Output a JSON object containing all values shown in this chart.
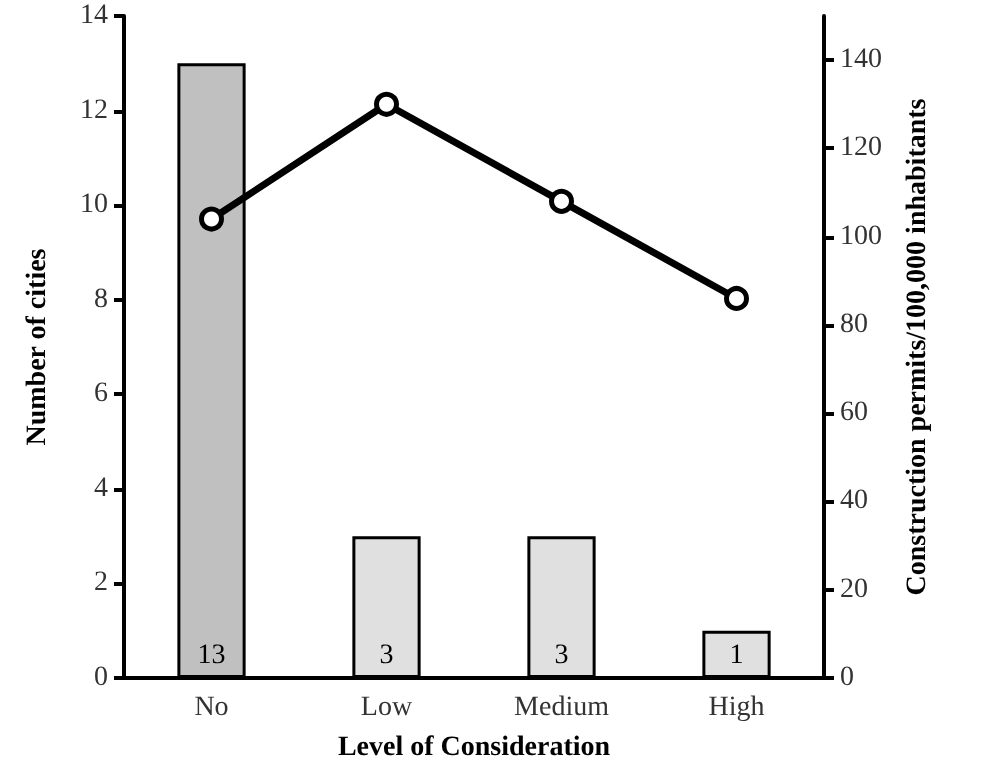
{
  "chart_data": {
    "type": "bar",
    "xlabel": "Level of Consideration",
    "ylabel": "Number of cities",
    "y2label": "Construction permits/100,000 inhabitants",
    "categories": [
      "No",
      "Low",
      "Medium",
      "High"
    ],
    "series": [
      {
        "colors": [
          "#c0c0c0",
          "#e0e0e0",
          "#e0e0e0",
          "#e0e0e0"
        ],
        "values": [
          13,
          3,
          3,
          1
        ],
        "data_labels": true
      },
      {
        "type": "line",
        "axis": "y2",
        "color": "#000000",
        "marker": "circle",
        "line_style": "solid",
        "values": [
          104,
          130,
          108,
          86
        ]
      }
    ],
    "ylim": [
      0,
      14
    ],
    "yticks": [
      0,
      2,
      4,
      6,
      8,
      10,
      12,
      14
    ],
    "y2lim": [
      0,
      150
    ],
    "y2ticks": [
      0,
      20,
      40,
      60,
      80,
      100,
      120,
      140
    ],
    "grid": false
  }
}
